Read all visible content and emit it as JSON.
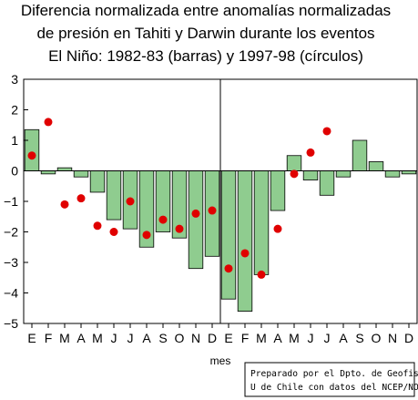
{
  "chart_data": {
    "type": "bar",
    "title_lines": [
      "Diferencia normalizada entre anomalías normalizadas",
      "de presión en Tahiti y Darwin durante los eventos",
      "El Niño: 1982-83 (barras) y 1997-98 (círculos)"
    ],
    "xlabel": "mes",
    "ylabel": "",
    "ylim": [
      -5,
      3
    ],
    "yticks": [
      -5,
      -4,
      -3,
      -2,
      -1,
      0,
      1,
      2,
      3
    ],
    "categories": [
      "E",
      "F",
      "M",
      "A",
      "M",
      "J",
      "J",
      "A",
      "S",
      "O",
      "N",
      "D",
      "E",
      "F",
      "M",
      "A",
      "M",
      "J",
      "J",
      "A",
      "S",
      "O",
      "N",
      "D"
    ],
    "series": [
      {
        "name": "1982-83",
        "kind": "bar",
        "color": "#8fcc8f",
        "values": [
          1.35,
          -0.1,
          0.1,
          -0.2,
          -0.7,
          -1.6,
          -1.9,
          -2.5,
          -2.0,
          -2.2,
          -3.2,
          -2.8,
          -4.2,
          -4.6,
          -3.4,
          -1.3,
          0.5,
          -0.3,
          -0.8,
          -0.2,
          1.0,
          0.3,
          -0.2,
          -0.1
        ]
      },
      {
        "name": "1997-98",
        "kind": "points",
        "color": "#e00000",
        "values": [
          0.5,
          1.6,
          -1.1,
          -0.9,
          -1.8,
          -2.0,
          -1.0,
          -2.1,
          -1.6,
          -1.9,
          -1.4,
          -1.3,
          -3.2,
          -2.7,
          -3.4,
          -1.9,
          -0.1,
          0.6,
          1.3,
          null,
          null,
          null,
          null,
          null
        ]
      }
    ],
    "divider_after_index": 11,
    "grid": false,
    "legend": "none"
  },
  "credit": {
    "line1": "Preparado por el Dpto. de Geofisica,",
    "line2": "U de Chile con datos del NCEP/NOAA"
  }
}
